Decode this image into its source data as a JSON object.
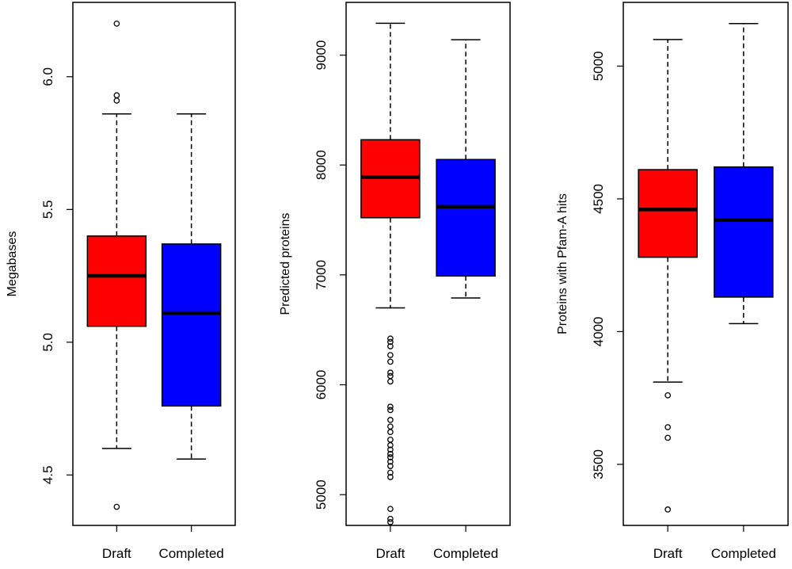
{
  "chart_data": [
    {
      "type": "boxplot",
      "ylabel": "Megabases",
      "categories": [
        "Draft",
        "Completed"
      ],
      "yticks": [
        "4.5",
        "5.0",
        "5.5",
        "6.0"
      ],
      "tick_values": [
        4.5,
        5.0,
        5.5,
        6.0
      ],
      "ylim": [
        4.31,
        6.28
      ],
      "series": [
        {
          "name": "Draft",
          "color": "#ff0000",
          "whisker_low": 4.6,
          "q1": 5.06,
          "median": 5.25,
          "q3": 5.4,
          "whisker_high": 5.86,
          "outliers": [
            4.38,
            5.91,
            5.93,
            6.2
          ]
        },
        {
          "name": "Completed",
          "color": "#0000ff",
          "whisker_low": 4.56,
          "q1": 4.76,
          "median": 5.11,
          "q3": 5.37,
          "whisker_high": 5.86,
          "outliers": []
        }
      ]
    },
    {
      "type": "boxplot",
      "ylabel": "Predicted proteins",
      "categories": [
        "Draft",
        "Completed"
      ],
      "yticks": [
        "5000",
        "6000",
        "7000",
        "8000",
        "9000"
      ],
      "tick_values": [
        5000,
        6000,
        7000,
        8000,
        9000
      ],
      "ylim": [
        4720,
        9480
      ],
      "series": [
        {
          "name": "Draft",
          "color": "#ff0000",
          "whisker_low": 6700,
          "q1": 7520,
          "median": 7890,
          "q3": 8230,
          "whisker_high": 9290,
          "outliers": [
            4750,
            4780,
            4870,
            5160,
            5200,
            5260,
            5300,
            5340,
            5370,
            5410,
            5450,
            5500,
            5570,
            5620,
            5680,
            5770,
            5800,
            6030,
            6080,
            6110,
            6210,
            6270,
            6350,
            6390,
            6420
          ]
        },
        {
          "name": "Completed",
          "color": "#0000ff",
          "whisker_low": 6790,
          "q1": 6990,
          "median": 7620,
          "q3": 8050,
          "whisker_high": 9140,
          "outliers": []
        }
      ]
    },
    {
      "type": "boxplot",
      "ylabel": "Proteins with Pfam-A hits",
      "categories": [
        "Draft",
        "Completed"
      ],
      "yticks": [
        "3500",
        "4000",
        "4500",
        "5000"
      ],
      "tick_values": [
        3500,
        4000,
        4500,
        5000
      ],
      "ylim": [
        3270,
        5240
      ],
      "series": [
        {
          "name": "Draft",
          "color": "#ff0000",
          "whisker_low": 3810,
          "q1": 4280,
          "median": 4460,
          "q3": 4610,
          "whisker_high": 5100,
          "outliers": [
            3330,
            3600,
            3640,
            3760
          ]
        },
        {
          "name": "Completed",
          "color": "#0000ff",
          "whisker_low": 4030,
          "q1": 4130,
          "median": 4420,
          "q3": 4620,
          "whisker_high": 5160,
          "outliers": []
        }
      ]
    }
  ]
}
